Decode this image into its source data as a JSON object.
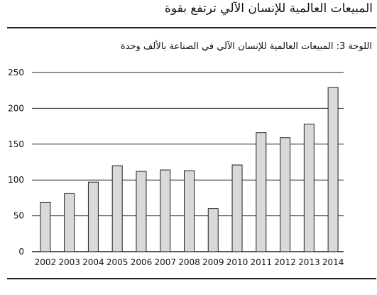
{
  "header": {
    "title": "المبيعات العالمية للإنسان الآلي ترتفع بقوة"
  },
  "chart_data": {
    "type": "bar",
    "title": "اللوحة 3: المبيعات العالمية للإنسان الآلي في الصناعة بالألف وحدة",
    "categories": [
      "2002",
      "2003",
      "2004",
      "2005",
      "2006",
      "2007",
      "2008",
      "2009",
      "2010",
      "2011",
      "2012",
      "2013",
      "2014"
    ],
    "values": [
      69,
      81,
      97,
      120,
      112,
      114,
      113,
      60,
      121,
      166,
      159,
      178,
      229
    ],
    "ylim": [
      0,
      250
    ],
    "yticks": [
      0,
      50,
      100,
      150,
      200,
      250
    ],
    "grid": true,
    "bar_color": "#d9d9d9",
    "bar_stroke": "#222222"
  }
}
